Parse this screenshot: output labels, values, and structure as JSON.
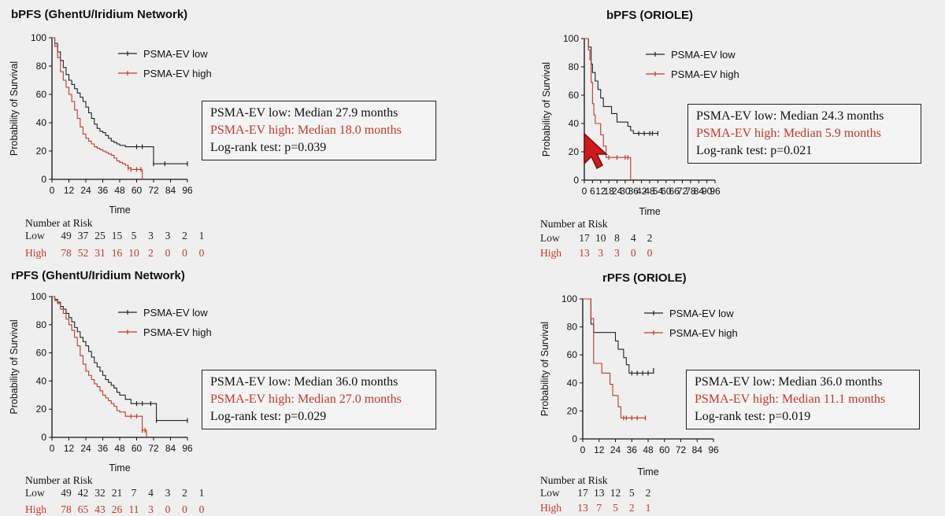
{
  "colors": {
    "low": "#222222",
    "high": "#c0392b"
  },
  "risk_header": "Number at Risk",
  "risk_low_label": "Low",
  "risk_high_label": "High",
  "chart_data": [
    {
      "type": "line",
      "title": "bPFS (GhentU/Iridium Network)",
      "xlabel": "Time",
      "ylabel": "Probability of Survival",
      "xticks": [
        0,
        12,
        24,
        36,
        48,
        60,
        72,
        84,
        96
      ],
      "yticks": [
        0,
        20,
        40,
        60,
        80,
        100
      ],
      "xlim": [
        0,
        96
      ],
      "ylim": [
        0,
        100
      ],
      "series": [
        {
          "name": "PSMA-EV low",
          "x": [
            0,
            2,
            4,
            6,
            8,
            10,
            12,
            14,
            16,
            18,
            20,
            22,
            24,
            26,
            28,
            30,
            32,
            34,
            36,
            38,
            40,
            42,
            44,
            46,
            48,
            52,
            56,
            60,
            64,
            72,
            80,
            96
          ],
          "y": [
            100,
            96,
            90,
            84,
            79,
            74,
            70,
            67,
            64,
            61,
            58,
            55,
            51,
            47,
            43,
            39,
            36,
            34,
            33,
            31,
            29,
            27,
            26,
            25,
            24,
            23,
            23,
            23,
            23,
            11,
            11,
            11
          ]
        },
        {
          "name": "PSMA-EV high",
          "x": [
            0,
            2,
            4,
            6,
            8,
            10,
            12,
            14,
            16,
            18,
            20,
            22,
            24,
            26,
            28,
            30,
            32,
            34,
            36,
            38,
            40,
            42,
            44,
            46,
            48,
            50,
            52,
            54,
            56,
            60,
            63,
            64
          ],
          "y": [
            100,
            94,
            86,
            76,
            70,
            65,
            60,
            55,
            49,
            43,
            37,
            32,
            29,
            27,
            25,
            23,
            22,
            21,
            20,
            19,
            18,
            17,
            15,
            13,
            12,
            11,
            10,
            8,
            7,
            7,
            7,
            0
          ]
        }
      ],
      "stats": [
        "PSMA-EV low: Median 27.9 months",
        "PSMA-EV high: Median 18.0 months",
        "Log-rank test: p=0.039"
      ],
      "risk_low": [
        "49",
        "37",
        "25",
        "15",
        "5",
        "3",
        "3",
        "2",
        "1"
      ],
      "risk_high": [
        "78",
        "52",
        "31",
        "16",
        "10",
        "2",
        "0",
        "0",
        "0"
      ]
    },
    {
      "type": "line",
      "title": "bPFS (ORIOLE)",
      "xlabel": "Time",
      "ylabel": "Probability of Survival",
      "xticks": [
        0,
        6,
        12,
        18,
        24,
        30,
        36,
        42,
        48,
        54,
        60,
        66,
        72,
        78,
        84,
        90,
        96
      ],
      "yticks": [
        0,
        20,
        40,
        60,
        80,
        100
      ],
      "xlim": [
        0,
        96
      ],
      "ylim": [
        0,
        100
      ],
      "series": [
        {
          "name": "PSMA-EV low",
          "x": [
            0,
            3,
            5,
            6,
            8,
            10,
            12,
            14,
            16,
            20,
            22,
            24,
            26,
            30,
            32,
            34,
            36,
            40,
            44,
            48,
            50,
            54
          ],
          "y": [
            100,
            94,
            82,
            76,
            70,
            64,
            58,
            52,
            52,
            47,
            47,
            41,
            41,
            41,
            38,
            35,
            33,
            33,
            33,
            33,
            33,
            33
          ]
        },
        {
          "name": "PSMA-EV high",
          "x": [
            0,
            3,
            4,
            5,
            6,
            7,
            8,
            9,
            10,
            12,
            14,
            16,
            18,
            24,
            30,
            32,
            34
          ],
          "y": [
            100,
            92,
            85,
            69,
            54,
            46,
            40,
            40,
            40,
            32,
            24,
            16,
            16,
            16,
            16,
            16,
            0
          ]
        }
      ],
      "stats": [
        "PSMA-EV low: Median 24.3 months",
        "PSMA-EV high: Median 5.9 months",
        "Log-rank test: p=0.021"
      ],
      "risk_low": [
        "17",
        "10",
        "8",
        "4",
        "2"
      ],
      "risk_high": [
        "13",
        "3",
        "3",
        "0",
        "0"
      ]
    },
    {
      "type": "line",
      "title": "rPFS (GhentU/Iridium Network)",
      "xlabel": "Time",
      "ylabel": "Probability of Survival",
      "xticks": [
        0,
        12,
        24,
        36,
        48,
        60,
        72,
        84,
        96
      ],
      "yticks": [
        0,
        20,
        40,
        60,
        80,
        100
      ],
      "xlim": [
        0,
        96
      ],
      "ylim": [
        0,
        100
      ],
      "series": [
        {
          "name": "PSMA-EV low",
          "x": [
            0,
            2,
            4,
            6,
            8,
            10,
            12,
            14,
            16,
            18,
            20,
            22,
            24,
            26,
            28,
            30,
            32,
            34,
            36,
            38,
            40,
            42,
            44,
            46,
            48,
            52,
            56,
            60,
            64,
            70,
            74,
            96
          ],
          "y": [
            100,
            98,
            96,
            93,
            91,
            88,
            85,
            82,
            78,
            75,
            71,
            68,
            65,
            61,
            57,
            53,
            50,
            47,
            44,
            41,
            39,
            37,
            35,
            32,
            30,
            27,
            24,
            24,
            24,
            24,
            12,
            12
          ]
        },
        {
          "name": "PSMA-EV high",
          "x": [
            0,
            2,
            4,
            6,
            8,
            10,
            12,
            14,
            16,
            18,
            20,
            22,
            24,
            26,
            28,
            30,
            32,
            34,
            36,
            38,
            40,
            42,
            44,
            46,
            48,
            52,
            56,
            60,
            64,
            66,
            67
          ],
          "y": [
            100,
            97,
            95,
            91,
            88,
            84,
            80,
            76,
            71,
            65,
            58,
            52,
            47,
            44,
            41,
            38,
            36,
            33,
            30,
            28,
            26,
            24,
            22,
            19,
            18,
            15,
            15,
            15,
            5,
            5,
            0
          ]
        }
      ],
      "stats": [
        "PSMA-EV low: Median 36.0 months",
        "PSMA-EV high: Median 27.0 months",
        "Log-rank test: p=0.029"
      ],
      "risk_low": [
        "49",
        "42",
        "32",
        "21",
        "7",
        "4",
        "3",
        "2",
        "1"
      ],
      "risk_high": [
        "78",
        "65",
        "43",
        "26",
        "11",
        "3",
        "0",
        "0",
        "0"
      ]
    },
    {
      "type": "line",
      "title": "rPFS (ORIOLE)",
      "xlabel": "Time",
      "ylabel": "Probability of Survival",
      "xticks": [
        0,
        12,
        24,
        36,
        48,
        60,
        72,
        84,
        96
      ],
      "yticks": [
        0,
        20,
        40,
        60,
        80,
        100
      ],
      "xlim": [
        0,
        96
      ],
      "ylim": [
        0,
        100
      ],
      "series": [
        {
          "name": "PSMA-EV low",
          "x": [
            0,
            4,
            6,
            8,
            12,
            16,
            20,
            24,
            26,
            28,
            30,
            32,
            34,
            36,
            40,
            44,
            48,
            52
          ],
          "y": [
            100,
            100,
            82,
            76,
            76,
            76,
            76,
            70,
            64,
            64,
            58,
            53,
            47,
            47,
            47,
            47,
            47,
            49
          ]
        },
        {
          "name": "PSMA-EV high",
          "x": [
            0,
            4,
            6,
            8,
            12,
            14,
            16,
            20,
            22,
            24,
            26,
            28,
            30,
            32,
            36,
            40,
            46
          ],
          "y": [
            100,
            100,
            86,
            54,
            54,
            47,
            47,
            39,
            31,
            31,
            23,
            15,
            15,
            15,
            15,
            15,
            15
          ]
        }
      ],
      "stats": [
        "PSMA-EV low: Median 36.0 months",
        "PSMA-EV high: Median 11.1 months",
        "Log-rank test: p=0.019"
      ],
      "risk_low": [
        "17",
        "13",
        "12",
        "5",
        "2"
      ],
      "risk_high": [
        "13",
        "7",
        "5",
        "2",
        "1"
      ]
    }
  ]
}
